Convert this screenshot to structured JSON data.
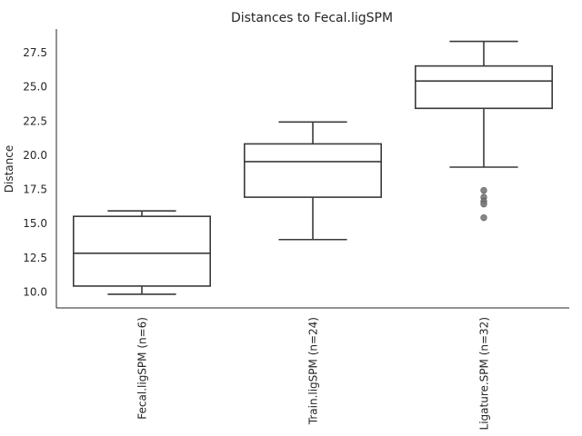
{
  "chart_data": {
    "type": "box",
    "title": "Distances to Fecal.ligSPM",
    "xlabel": "",
    "ylabel": "Distance",
    "ylim": [
      8.8,
      29.2
    ],
    "yticks": [
      10.0,
      12.5,
      15.0,
      17.5,
      20.0,
      22.5,
      25.0,
      27.5
    ],
    "ytick_labels": [
      "10.0",
      "12.5",
      "15.0",
      "17.5",
      "20.0",
      "22.5",
      "25.0",
      "27.5"
    ],
    "grid": false,
    "categories": [
      "Fecal.ligSPM (n=6)",
      "Train.ligSPM (n=24)",
      "Ligature.SPM (n=32)"
    ],
    "boxes": [
      {
        "whisker_low": 9.8,
        "q1": 10.4,
        "median": 12.8,
        "q3": 15.5,
        "whisker_high": 15.9,
        "outliers": []
      },
      {
        "whisker_low": 13.8,
        "q1": 16.9,
        "median": 19.5,
        "q3": 20.8,
        "whisker_high": 22.4,
        "outliers": []
      },
      {
        "whisker_low": 19.1,
        "q1": 23.4,
        "median": 25.4,
        "q3": 26.5,
        "whisker_high": 28.3,
        "outliers": [
          17.4,
          16.9,
          16.6,
          16.4,
          15.4
        ]
      }
    ],
    "colors": {
      "box_fill": "#ffffff",
      "line": "#3a3a3a",
      "outlier": "#7a7a7a",
      "axis": "#262626"
    }
  }
}
